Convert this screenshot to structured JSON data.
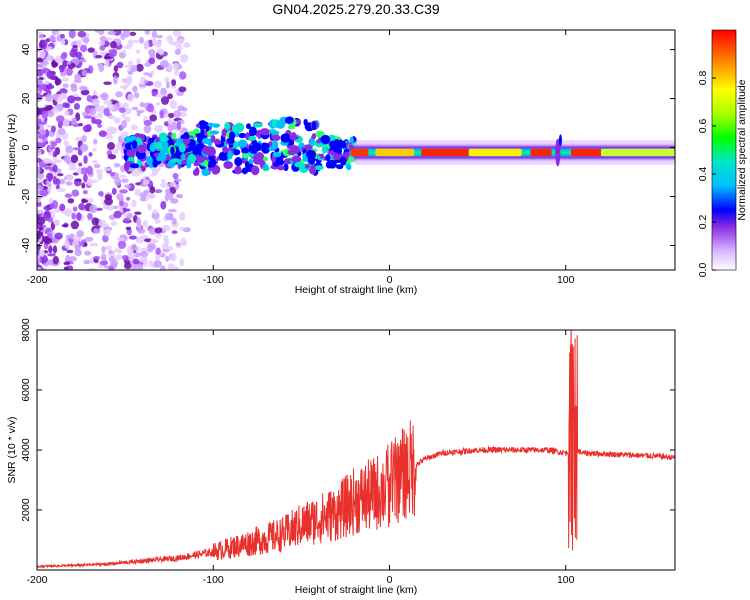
{
  "title": "GN04.2025.279.20.33.C39",
  "chart_data": [
    {
      "type": "heatmap",
      "panel": "top",
      "xlabel": "Height of straight line (km)",
      "ylabel": "Frequency (Hz)",
      "xlim": [
        -200,
        162
      ],
      "ylim": [
        -50,
        48
      ],
      "xticks": [
        -200,
        -100,
        0,
        100
      ],
      "yticks": [
        -40,
        -20,
        0,
        20,
        40
      ],
      "colorbar": {
        "label": "Normalized spectral amplitude",
        "range": [
          0,
          1
        ],
        "ticks": [
          "0.0",
          "0.2",
          "0.4",
          "0.6",
          "0.8"
        ],
        "tick_values": [
          0.0,
          0.2,
          0.4,
          0.6,
          0.8
        ]
      },
      "features": [
        {
          "name": "scattered noise",
          "x_range": [
            -200,
            -120
          ],
          "freq_range": [
            -50,
            48
          ],
          "amplitude": 0.1
        },
        {
          "name": "broad band",
          "x_range": [
            -150,
            -20
          ],
          "freq_range": [
            -12,
            12
          ],
          "amplitude": 0.3
        },
        {
          "name": "narrow carrier band",
          "x_range": [
            -20,
            162
          ],
          "center_freq": -2,
          "amplitude": 1.0
        },
        {
          "name": "spike at 95 km",
          "x": 95,
          "freq_range": [
            -15,
            10
          ],
          "amplitude": 0.1
        }
      ]
    },
    {
      "type": "line",
      "panel": "bottom",
      "xlabel": "Height of straight line (km)",
      "ylabel": "SNR (10 * v/v)",
      "xlim": [
        -200,
        162
      ],
      "ylim": [
        0,
        8000
      ],
      "xticks": [
        -200,
        -100,
        0,
        100
      ],
      "yticks": [
        2000,
        4000,
        6000,
        8000
      ],
      "color": "#e8302c",
      "series": [
        {
          "name": "SNR",
          "x": [
            -200,
            -180,
            -160,
            -140,
            -120,
            -100,
            -80,
            -60,
            -50,
            -40,
            -30,
            -20,
            -10,
            0,
            10,
            20,
            30,
            50,
            70,
            90,
            100,
            105,
            110,
            130,
            150,
            162
          ],
          "values": [
            120,
            150,
            200,
            300,
            400,
            600,
            900,
            1200,
            1500,
            1700,
            1900,
            2300,
            2500,
            2800,
            3300,
            3700,
            3900,
            4000,
            4000,
            4000,
            3900,
            4000,
            3900,
            3850,
            3800,
            3750
          ]
        }
      ],
      "annotations": [
        {
          "x": 0,
          "value": 4300,
          "note": "spike"
        },
        {
          "x": 103,
          "value": 8000,
          "note": "spike"
        },
        {
          "x": 104,
          "value": 700,
          "note": "dip"
        }
      ]
    }
  ]
}
